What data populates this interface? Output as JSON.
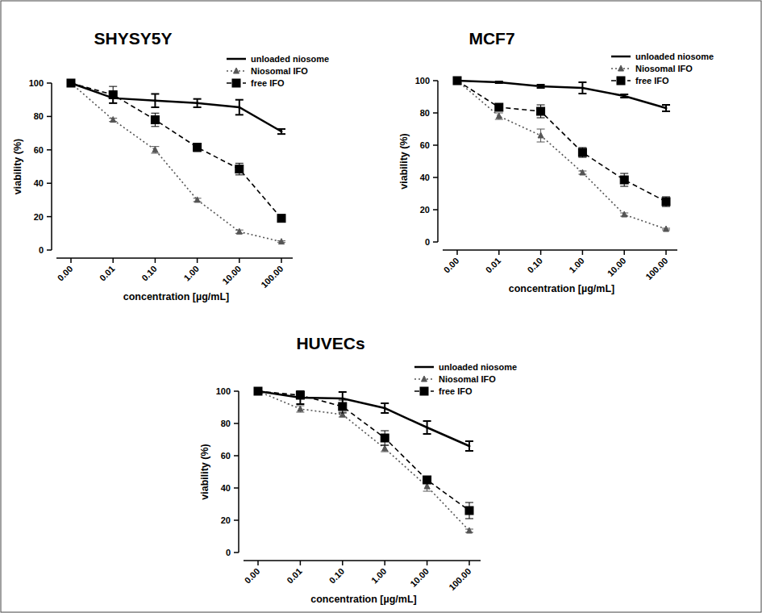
{
  "chart_data": [
    {
      "type": "line",
      "title": "SHYSY5Y",
      "x_label": "concentration [µg/mL]",
      "y_label": "viability (%)",
      "categories": [
        "0.00",
        "0.01",
        "0.10",
        "1.00",
        "10.00",
        "100.00"
      ],
      "ylim": [
        0,
        100
      ],
      "yticks": [
        0,
        20,
        40,
        60,
        80,
        100
      ],
      "grid": false,
      "legend": "upper right",
      "series": [
        {
          "name": "unloaded niosome",
          "color": "#000000",
          "marker": "none",
          "line_style": "solid",
          "values": [
            100,
            91,
            89.5,
            88,
            85.5,
            71
          ],
          "errors": [
            0,
            3,
            4,
            2.5,
            4.5,
            1.5
          ]
        },
        {
          "name": "Niosomal IFO",
          "color": "#555555",
          "marker": "triangle",
          "line_style": "dotted",
          "values": [
            100,
            78,
            60,
            30,
            11,
            5
          ],
          "errors": [
            0,
            1,
            2,
            1,
            1,
            0.5
          ]
        },
        {
          "name": "free IFO",
          "color": "#000000",
          "marker": "square",
          "line_style": "dashed",
          "values": [
            100,
            93,
            78,
            61.5,
            48.5,
            19
          ],
          "errors": [
            0,
            5,
            4,
            2.5,
            3.5,
            1.5
          ]
        }
      ]
    },
    {
      "type": "line",
      "title": "MCF7",
      "x_label": "concentration [µg/mL]",
      "y_label": "viability (%)",
      "categories": [
        "0.00",
        "0.01",
        "0.10",
        "1.00",
        "10.00",
        "100.00"
      ],
      "ylim": [
        0,
        100
      ],
      "yticks": [
        0,
        20,
        40,
        60,
        80,
        100
      ],
      "grid": false,
      "legend": "upper right",
      "series": [
        {
          "name": "unloaded niosome",
          "color": "#000000",
          "marker": "none",
          "line_style": "solid",
          "values": [
            100,
            99,
            96.5,
            95.5,
            90.5,
            83
          ],
          "errors": [
            0,
            0.5,
            1,
            3.5,
            1,
            2
          ]
        },
        {
          "name": "Niosomal IFO",
          "color": "#555555",
          "marker": "triangle",
          "line_style": "dotted",
          "values": [
            100,
            78,
            66,
            43,
            17,
            8
          ],
          "errors": [
            0,
            2,
            4,
            1,
            1,
            0.5
          ]
        },
        {
          "name": "free IFO",
          "color": "#000000",
          "marker": "square",
          "line_style": "dashed",
          "values": [
            100,
            83.5,
            81,
            55.5,
            38.5,
            25
          ],
          "errors": [
            0,
            2,
            4,
            3,
            4,
            3
          ]
        }
      ]
    },
    {
      "type": "line",
      "title": "HUVECs",
      "x_label": "concentration [µg/mL]",
      "y_label": "viability (%)",
      "categories": [
        "0.00",
        "0.01",
        "0.10",
        "1.00",
        "10.00",
        "100.00"
      ],
      "ylim": [
        0,
        100
      ],
      "yticks": [
        0,
        20,
        40,
        60,
        80,
        100
      ],
      "grid": false,
      "legend": "upper right",
      "series": [
        {
          "name": "unloaded niosome",
          "color": "#000000",
          "marker": "none",
          "line_style": "solid",
          "values": [
            100,
            96,
            95.5,
            89.5,
            77.5,
            66
          ],
          "errors": [
            0,
            4,
            4,
            3,
            4,
            3
          ]
        },
        {
          "name": "Niosomal IFO",
          "color": "#555555",
          "marker": "triangle",
          "line_style": "dotted",
          "values": [
            100,
            89,
            85.5,
            64.5,
            41,
            13.5
          ],
          "errors": [
            0,
            2,
            1.5,
            2,
            3,
            1
          ]
        },
        {
          "name": "free IFO",
          "color": "#000000",
          "marker": "square",
          "line_style": "dashed",
          "values": [
            100,
            97.5,
            90.5,
            71,
            45,
            26
          ],
          "errors": [
            0,
            1,
            4,
            4.5,
            2,
            5
          ]
        }
      ]
    }
  ]
}
